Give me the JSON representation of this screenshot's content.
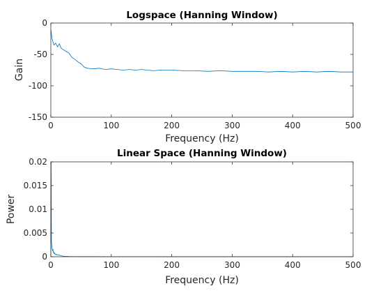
{
  "chart_data": [
    {
      "type": "line",
      "title": "Logspace (Hanning Window)",
      "xlabel": "Frequency (Hz)",
      "ylabel": "Gain",
      "xlim": [
        0,
        500
      ],
      "ylim": [
        -150,
        0
      ],
      "xticks": [
        0,
        100,
        200,
        300,
        400,
        500
      ],
      "yticks": [
        -150,
        -100,
        -50,
        0
      ],
      "xtick_labels": [
        "0",
        "100",
        "200",
        "300",
        "400",
        "500"
      ],
      "ytick_labels": [
        "-150",
        "-100",
        "-50",
        "0"
      ],
      "grid": false,
      "color": "#0072BD",
      "series": [
        {
          "x": [
            0,
            2,
            5,
            8,
            11,
            14,
            17,
            20,
            25,
            30,
            35,
            40,
            45,
            50,
            55,
            60,
            70,
            80,
            90,
            100,
            110,
            120,
            130,
            140,
            150,
            160,
            170,
            180,
            190,
            200,
            220,
            240,
            260,
            280,
            300,
            320,
            340,
            360,
            380,
            400,
            420,
            440,
            460,
            480,
            500
          ],
          "values": [
            -10,
            -25,
            -35,
            -32,
            -38,
            -33,
            -40,
            -42,
            -45,
            -48,
            -55,
            -58,
            -62,
            -65,
            -70,
            -72,
            -73,
            -72,
            -74,
            -73,
            -74,
            -75,
            -74,
            -75,
            -74,
            -75,
            -76,
            -75,
            -75,
            -75,
            -76,
            -76,
            -77,
            -76,
            -77,
            -77,
            -77,
            -78,
            -77,
            -78,
            -77,
            -78,
            -77,
            -78,
            -78
          ]
        }
      ]
    },
    {
      "type": "line",
      "title": "Linear Space (Hanning Window)",
      "xlabel": "Frequency (Hz)",
      "ylabel": "Power",
      "xlim": [
        0,
        500
      ],
      "ylim": [
        0,
        0.02
      ],
      "xticks": [
        0,
        100,
        200,
        300,
        400,
        500
      ],
      "yticks": [
        0,
        0.005,
        0.01,
        0.015,
        0.02
      ],
      "xtick_labels": [
        "0",
        "100",
        "200",
        "300",
        "400",
        "500"
      ],
      "ytick_labels": [
        "0",
        "0.005",
        "0.01",
        "0.015",
        "0.02"
      ],
      "grid": false,
      "color": "#0072BD",
      "series": [
        {
          "x": [
            0,
            0.5,
            1,
            1.5,
            2,
            2.5,
            3,
            3.5,
            4,
            4.5,
            5,
            6,
            7,
            8,
            9,
            10,
            12,
            14,
            16,
            18,
            20,
            30,
            50,
            100,
            200,
            300,
            400,
            500
          ],
          "values": [
            0.0005,
            0.02,
            0.003,
            0.0025,
            0.0018,
            0.0015,
            0.0012,
            0.0016,
            0.0009,
            0.0011,
            0.0007,
            0.0008,
            0.0005,
            0.0006,
            0.0004,
            0.0005,
            0.0003,
            0.0004,
            0.0002,
            0.0002,
            0.0001,
            5e-05,
            3e-05,
            2e-05,
            1e-05,
            1e-05,
            1e-05,
            1e-05
          ]
        }
      ]
    }
  ]
}
